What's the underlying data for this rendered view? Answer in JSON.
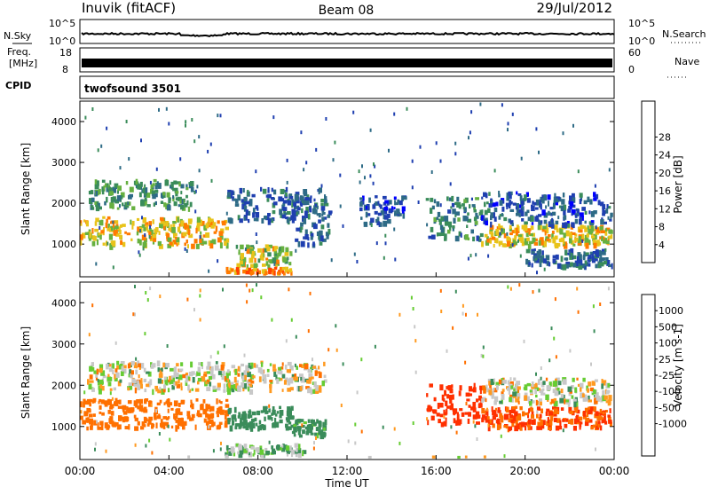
{
  "header": {
    "station": "Inuvik (fitACF)",
    "beam": "Beam 08",
    "date": "29/Jul/2012"
  },
  "nsky_panel": {
    "label": "N.Sky",
    "right_label": "N.Search",
    "left_ticks": [
      "10^5",
      "10^0"
    ],
    "right_ticks": [
      "10^5",
      "10^0"
    ]
  },
  "freq_panel": {
    "label_line1": "Freq.",
    "label_line2": "[MHz]",
    "right_label": "Nave",
    "left_ticks": [
      "18",
      "8"
    ],
    "right_ticks": [
      "60",
      "0"
    ]
  },
  "cpid_panel": {
    "label": "CPID",
    "program": "twofsound 3501"
  },
  "colors": {
    "power": [
      "#0000ff",
      "#1f3fb0",
      "#2e6b86",
      "#3a8c5a",
      "#66b040",
      "#e8c31a",
      "#ff7a00",
      "#ff4000",
      "#e00000"
    ],
    "velocity": [
      "#1f3fb0",
      "#2e6b86",
      "#3a8c5a",
      "#66cc33",
      "#c8c8c8",
      "#c8c8c8",
      "#ff9a20",
      "#ff7000",
      "#ff3000",
      "#e00000"
    ],
    "ground_scatter": "#9a9a9a"
  },
  "chart_data": [
    {
      "type": "heatmap",
      "panel": "power",
      "ylabel": "Slant Range [km]",
      "yticks": [
        "1000",
        "2000",
        "3000",
        "4000"
      ],
      "ylim": [
        200,
        4500
      ],
      "xlim": [
        0,
        24
      ],
      "colorbar_label": "Power [dB]",
      "colorbar_ticks": [
        "4",
        "8",
        "12",
        "16",
        "20",
        "24",
        "28"
      ],
      "regions": [
        {
          "t0": 0.0,
          "t1": 6.6,
          "r0": 1000,
          "r1": 1700,
          "v": 22
        },
        {
          "t0": 0.3,
          "t1": 5.0,
          "r0": 1900,
          "r1": 2600,
          "v": 14
        },
        {
          "t0": 6.6,
          "t1": 11.0,
          "r0": 1600,
          "r1": 2400,
          "v": 9
        },
        {
          "t0": 7.0,
          "t1": 9.5,
          "r0": 500,
          "r1": 1000,
          "v": 20
        },
        {
          "t0": 6.5,
          "t1": 9.5,
          "r0": 200,
          "r1": 450,
          "v": 26
        },
        {
          "t0": 9.5,
          "t1": 11.2,
          "r0": 1000,
          "r1": 2200,
          "v": 10
        },
        {
          "t0": 12.5,
          "t1": 14.5,
          "r0": 1500,
          "r1": 2200,
          "v": 7
        },
        {
          "t0": 15.5,
          "t1": 18.0,
          "r0": 1100,
          "r1": 2200,
          "v": 12
        },
        {
          "t0": 18.0,
          "t1": 24.0,
          "r0": 1000,
          "r1": 1500,
          "v": 22
        },
        {
          "t0": 18.0,
          "t1": 24.0,
          "r0": 1500,
          "r1": 2300,
          "v": 8
        },
        {
          "t0": 20.0,
          "t1": 24.0,
          "r0": 500,
          "r1": 900,
          "v": 9
        }
      ]
    },
    {
      "type": "heatmap",
      "panel": "velocity",
      "ylabel": "Slant Range [km]",
      "yticks": [
        "1000",
        "2000",
        "3000",
        "4000"
      ],
      "ylim": [
        200,
        4500
      ],
      "xlim": [
        0,
        24
      ],
      "colorbar_label": "Velocity [m s-1]",
      "colorbar_ticks": [
        "1000",
        "500",
        "100",
        "25",
        "-25",
        "-100",
        "-500",
        "-1000"
      ],
      "xticks": [
        "00:00",
        "04:00",
        "08:00",
        "12:00",
        "16:00",
        "20:00",
        "00:00"
      ],
      "xlabel": "Time UT",
      "regions": [
        {
          "t0": 0.0,
          "t1": 6.6,
          "r0": 1000,
          "r1": 1700,
          "v": -200
        },
        {
          "t0": 0.3,
          "t1": 11.0,
          "r0": 1900,
          "r1": 2600,
          "v": 0
        },
        {
          "t0": 6.6,
          "t1": 9.5,
          "r0": 1000,
          "r1": 1500,
          "v": 200
        },
        {
          "t0": 9.5,
          "t1": 11.0,
          "r0": 800,
          "r1": 1200,
          "v": 120
        },
        {
          "t0": 6.5,
          "t1": 10.0,
          "r0": 200,
          "r1": 600,
          "v": 60
        },
        {
          "t0": 15.5,
          "t1": 18.0,
          "r0": 1100,
          "r1": 2100,
          "v": -450
        },
        {
          "t0": 18.0,
          "t1": 24.0,
          "r0": 1000,
          "r1": 1500,
          "v": -300
        },
        {
          "t0": 18.0,
          "t1": 24.0,
          "r0": 1600,
          "r1": 2200,
          "v": 0
        },
        {
          "t0": 0.0,
          "t1": 24.0,
          "r0": 200,
          "r1": 300,
          "v": 0
        }
      ]
    }
  ]
}
